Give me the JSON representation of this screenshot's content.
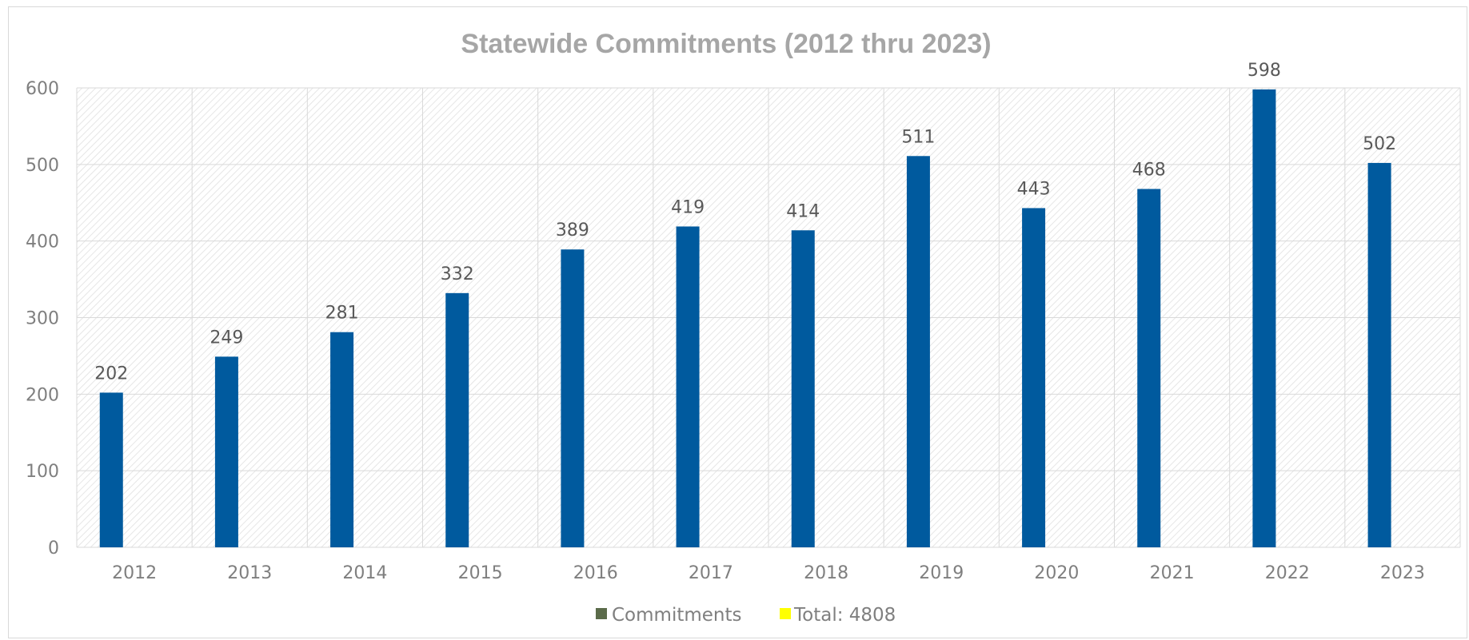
{
  "chart_data": {
    "type": "bar",
    "title": "Statewide Commitments (2012 thru 2023)",
    "categories": [
      "2012",
      "2013",
      "2014",
      "2015",
      "2016",
      "2017",
      "2018",
      "2019",
      "2020",
      "2021",
      "2022",
      "2023"
    ],
    "series": [
      {
        "name": "Commitments",
        "values": [
          202,
          249,
          281,
          332,
          389,
          419,
          414,
          511,
          443,
          468,
          598,
          502
        ],
        "color": "#005a9e",
        "legend_color": "#5b6b4a"
      }
    ],
    "legend": [
      {
        "label": "Commitments",
        "color": "#5b6b4a"
      },
      {
        "label": "Total: 4808",
        "color": "#ffff00"
      }
    ],
    "legend_position": "bottom",
    "ylim": [
      0,
      600
    ],
    "yticks": [
      "0",
      "100",
      "200",
      "300",
      "400",
      "500",
      "600"
    ],
    "grid": true,
    "data_labels": true,
    "xlabel": "",
    "ylabel": ""
  }
}
